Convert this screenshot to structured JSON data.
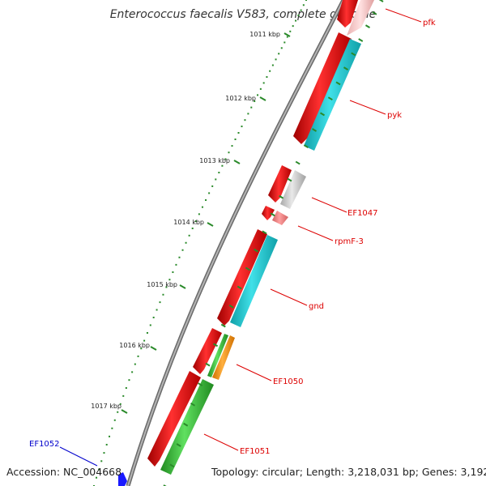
{
  "title": "Enterococcus faecalis V583, complete genome",
  "footer": {
    "accession": "Accession: NC_004668",
    "topology": "Topology: circular; Length: 3,218,031 bp; Genes: 3,192"
  },
  "scale_ticks": [
    "1011 kbp",
    "1012 kbp",
    "1013 kbp",
    "1014 kbp",
    "1015 kbp",
    "1016 kbp",
    "1017 kbp"
  ],
  "colors": {
    "backbone": "#8c8c8c",
    "cds_forward": "#e00000",
    "cds_reverse_cyan": "#20c8d0",
    "cds_reverse_grey": "#c8c8c8",
    "cds_reverse_green": "#40c040",
    "cds_reverse_orange": "#ff9a20",
    "trna": "#f08080",
    "label_red": "#dd0000",
    "label_blue": "#0000cc",
    "ticks": "#2a8a2a"
  },
  "gene_labels": [
    {
      "text": "pfk",
      "color": "red"
    },
    {
      "text": "pyk",
      "color": "red"
    },
    {
      "text": "EF1047",
      "color": "red"
    },
    {
      "text": "rpmF-3",
      "color": "red"
    },
    {
      "text": "gnd",
      "color": "red"
    },
    {
      "text": "EF1050",
      "color": "red"
    },
    {
      "text": "EF1051",
      "color": "red"
    },
    {
      "text": "EF1052",
      "color": "blue"
    }
  ]
}
